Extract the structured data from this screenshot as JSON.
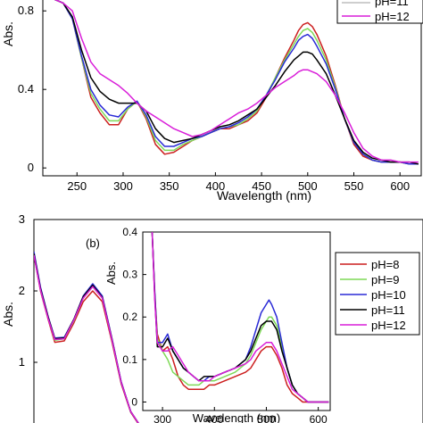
{
  "chart_data": [
    {
      "panel": "top",
      "type": "line",
      "xlabel": "Wavelength (nm)",
      "ylabel": "Abs.",
      "xlim": [
        213,
        623
      ],
      "ylim": [
        -0.04,
        0.86
      ],
      "xticks": [
        250,
        300,
        350,
        400,
        450,
        500,
        550,
        600
      ],
      "yticks": [
        0,
        0.4,
        0.8
      ],
      "ytick_labels": [
        "0",
        "0.4",
        "0.8"
      ],
      "legend_position": "top-right",
      "legend_visible": [
        "pH=11",
        "pH=12"
      ],
      "series": [
        {
          "name": "pH=8",
          "color": "#cc1f1f",
          "x": [
            225,
            235,
            245,
            255,
            265,
            275,
            285,
            295,
            305,
            315,
            325,
            335,
            345,
            355,
            365,
            375,
            385,
            395,
            405,
            415,
            425,
            435,
            445,
            455,
            465,
            475,
            485,
            490,
            495,
            500,
            505,
            510,
            520,
            530,
            540,
            550,
            560,
            570,
            580,
            590,
            600,
            610,
            620
          ],
          "y": [
            0.86,
            0.84,
            0.76,
            0.56,
            0.36,
            0.28,
            0.22,
            0.22,
            0.3,
            0.34,
            0.25,
            0.12,
            0.07,
            0.08,
            0.11,
            0.14,
            0.16,
            0.18,
            0.2,
            0.2,
            0.22,
            0.24,
            0.28,
            0.36,
            0.46,
            0.56,
            0.65,
            0.7,
            0.73,
            0.74,
            0.72,
            0.68,
            0.57,
            0.42,
            0.25,
            0.12,
            0.06,
            0.04,
            0.03,
            0.03,
            0.03,
            0.02,
            0.02
          ]
        },
        {
          "name": "pH=9",
          "color": "#7ed957",
          "x": [
            225,
            235,
            245,
            255,
            265,
            275,
            285,
            295,
            305,
            315,
            325,
            335,
            345,
            355,
            365,
            375,
            385,
            395,
            405,
            415,
            425,
            435,
            445,
            455,
            465,
            475,
            485,
            490,
            495,
            500,
            505,
            510,
            520,
            530,
            540,
            550,
            560,
            570,
            580,
            590,
            600,
            610,
            620
          ],
          "y": [
            0.86,
            0.84,
            0.76,
            0.56,
            0.38,
            0.3,
            0.24,
            0.24,
            0.3,
            0.34,
            0.26,
            0.14,
            0.09,
            0.09,
            0.12,
            0.14,
            0.16,
            0.18,
            0.2,
            0.21,
            0.22,
            0.25,
            0.29,
            0.37,
            0.46,
            0.55,
            0.63,
            0.67,
            0.7,
            0.71,
            0.69,
            0.65,
            0.55,
            0.41,
            0.25,
            0.13,
            0.07,
            0.04,
            0.03,
            0.03,
            0.03,
            0.02,
            0.02
          ]
        },
        {
          "name": "pH=10",
          "color": "#2a2ad6",
          "x": [
            225,
            235,
            245,
            255,
            265,
            275,
            285,
            295,
            305,
            315,
            325,
            335,
            345,
            355,
            365,
            375,
            385,
            395,
            405,
            415,
            425,
            435,
            445,
            455,
            465,
            475,
            485,
            490,
            495,
            500,
            505,
            510,
            520,
            530,
            540,
            550,
            560,
            570,
            580,
            590,
            600,
            610,
            620
          ],
          "y": [
            0.86,
            0.84,
            0.76,
            0.57,
            0.4,
            0.32,
            0.27,
            0.26,
            0.31,
            0.34,
            0.27,
            0.16,
            0.11,
            0.11,
            0.13,
            0.15,
            0.16,
            0.18,
            0.2,
            0.21,
            0.23,
            0.26,
            0.3,
            0.37,
            0.45,
            0.54,
            0.61,
            0.65,
            0.67,
            0.68,
            0.66,
            0.62,
            0.53,
            0.4,
            0.25,
            0.13,
            0.07,
            0.04,
            0.03,
            0.03,
            0.03,
            0.02,
            0.02
          ]
        },
        {
          "name": "pH=11",
          "color": "#000000",
          "x": [
            225,
            235,
            245,
            255,
            265,
            275,
            285,
            295,
            305,
            315,
            325,
            335,
            345,
            355,
            365,
            375,
            385,
            395,
            405,
            415,
            425,
            435,
            445,
            455,
            465,
            475,
            485,
            490,
            495,
            500,
            505,
            510,
            520,
            530,
            540,
            550,
            560,
            570,
            580,
            590,
            600,
            610,
            620
          ],
          "y": [
            0.86,
            0.84,
            0.77,
            0.6,
            0.46,
            0.39,
            0.35,
            0.33,
            0.33,
            0.33,
            0.29,
            0.2,
            0.15,
            0.13,
            0.14,
            0.15,
            0.17,
            0.19,
            0.21,
            0.22,
            0.24,
            0.27,
            0.3,
            0.36,
            0.42,
            0.49,
            0.55,
            0.57,
            0.59,
            0.59,
            0.58,
            0.55,
            0.48,
            0.37,
            0.25,
            0.14,
            0.08,
            0.05,
            0.04,
            0.03,
            0.03,
            0.03,
            0.02
          ]
        },
        {
          "name": "pH=12",
          "color": "#d91ed9",
          "x": [
            225,
            235,
            245,
            255,
            265,
            275,
            285,
            295,
            305,
            315,
            325,
            335,
            345,
            355,
            365,
            375,
            385,
            395,
            405,
            415,
            425,
            435,
            445,
            455,
            465,
            475,
            485,
            490,
            495,
            500,
            505,
            510,
            520,
            530,
            540,
            550,
            560,
            570,
            580,
            590,
            600,
            610,
            620
          ],
          "y": [
            0.86,
            0.84,
            0.8,
            0.66,
            0.54,
            0.48,
            0.45,
            0.42,
            0.38,
            0.33,
            0.29,
            0.26,
            0.23,
            0.2,
            0.18,
            0.16,
            0.17,
            0.19,
            0.22,
            0.25,
            0.28,
            0.3,
            0.33,
            0.37,
            0.41,
            0.44,
            0.47,
            0.49,
            0.5,
            0.5,
            0.49,
            0.48,
            0.44,
            0.37,
            0.28,
            0.18,
            0.1,
            0.06,
            0.04,
            0.04,
            0.03,
            0.03,
            0.03
          ]
        }
      ]
    },
    {
      "panel": "bottom",
      "type": "line",
      "annotation": "(b)",
      "ylabel": "Abs.",
      "xlim": [
        213,
        623
      ],
      "ylim": [
        0,
        3
      ],
      "yticks": [
        1,
        2,
        3
      ],
      "ytick_labels": [
        "1",
        "2",
        "3"
      ],
      "legend_position": "right",
      "series": [
        {
          "name": "pH=8",
          "color": "#cc1f1f",
          "x": [
            213,
            220,
            228,
            235,
            245,
            255,
            265,
            275,
            285,
            295,
            305,
            315,
            325,
            335
          ],
          "y": [
            2.5,
            2.0,
            1.6,
            1.28,
            1.3,
            1.55,
            1.85,
            2.0,
            1.85,
            1.3,
            0.7,
            0.3,
            0.1,
            0.0
          ]
        },
        {
          "name": "pH=9",
          "color": "#7ed957",
          "x": [
            213,
            220,
            228,
            235,
            245,
            255,
            265,
            275,
            285,
            295,
            305,
            315,
            325,
            335
          ],
          "y": [
            2.52,
            2.02,
            1.62,
            1.31,
            1.33,
            1.58,
            1.9,
            2.06,
            1.9,
            1.33,
            0.72,
            0.31,
            0.11,
            0.0
          ]
        },
        {
          "name": "pH=10",
          "color": "#2a2ad6",
          "x": [
            213,
            220,
            228,
            235,
            245,
            255,
            265,
            275,
            285,
            295,
            305,
            315,
            325,
            335
          ],
          "y": [
            2.55,
            2.05,
            1.64,
            1.34,
            1.35,
            1.6,
            1.93,
            2.1,
            1.93,
            1.35,
            0.73,
            0.31,
            0.11,
            0.0
          ]
        },
        {
          "name": "pH=11",
          "color": "#000000",
          "x": [
            213,
            220,
            228,
            235,
            245,
            255,
            265,
            275,
            285,
            295,
            305,
            315,
            325,
            335
          ],
          "y": [
            2.52,
            2.03,
            1.63,
            1.33,
            1.34,
            1.6,
            1.92,
            2.08,
            1.91,
            1.34,
            0.72,
            0.31,
            0.11,
            0.0
          ]
        },
        {
          "name": "pH=12",
          "color": "#d91ed9",
          "x": [
            213,
            220,
            228,
            235,
            245,
            255,
            265,
            275,
            285,
            295,
            305,
            315,
            325,
            335
          ],
          "y": [
            2.5,
            2.01,
            1.61,
            1.32,
            1.33,
            1.59,
            1.9,
            2.06,
            1.9,
            1.33,
            0.72,
            0.31,
            0.11,
            0.0
          ]
        }
      ]
    },
    {
      "panel": "inset",
      "type": "line",
      "xlabel": "Wavelength (nm)",
      "ylabel": "Abs.",
      "xlim": [
        262,
        623
      ],
      "ylim": [
        -0.02,
        0.4
      ],
      "xticks": [
        300,
        400,
        500,
        600
      ],
      "yticks": [
        0,
        0.1,
        0.2,
        0.3,
        0.4
      ],
      "ytick_labels": [
        "0",
        "0.1",
        "0.2",
        "0.3",
        "0.4"
      ],
      "series": [
        {
          "name": "pH=8",
          "color": "#cc1f1f",
          "x": [
            280,
            285,
            290,
            300,
            310,
            320,
            330,
            340,
            350,
            360,
            370,
            380,
            390,
            400,
            420,
            440,
            460,
            470,
            480,
            490,
            500,
            505,
            510,
            520,
            530,
            540,
            550,
            560,
            570,
            580,
            590,
            600,
            610,
            620
          ],
          "y": [
            0.4,
            0.25,
            0.16,
            0.12,
            0.13,
            0.1,
            0.06,
            0.04,
            0.03,
            0.03,
            0.03,
            0.03,
            0.04,
            0.04,
            0.05,
            0.06,
            0.07,
            0.08,
            0.1,
            0.12,
            0.13,
            0.13,
            0.13,
            0.11,
            0.08,
            0.04,
            0.02,
            0.01,
            0.0,
            0.0,
            0.0,
            0.0,
            0.0,
            0.0
          ]
        },
        {
          "name": "pH=9",
          "color": "#7ed957",
          "x": [
            280,
            285,
            290,
            300,
            310,
            320,
            330,
            340,
            350,
            360,
            370,
            380,
            390,
            400,
            420,
            440,
            460,
            470,
            480,
            490,
            500,
            505,
            510,
            520,
            530,
            540,
            550,
            560,
            570,
            580,
            590,
            600,
            610,
            620
          ],
          "y": [
            0.4,
            0.25,
            0.15,
            0.12,
            0.1,
            0.07,
            0.06,
            0.05,
            0.04,
            0.04,
            0.04,
            0.05,
            0.05,
            0.05,
            0.06,
            0.07,
            0.09,
            0.11,
            0.14,
            0.17,
            0.19,
            0.2,
            0.2,
            0.18,
            0.13,
            0.08,
            0.04,
            0.02,
            0.01,
            0.0,
            0.0,
            0.0,
            0.0,
            0.0
          ]
        },
        {
          "name": "pH=10",
          "color": "#2a2ad6",
          "x": [
            280,
            285,
            290,
            300,
            310,
            320,
            330,
            340,
            350,
            360,
            370,
            380,
            390,
            400,
            420,
            440,
            460,
            470,
            480,
            490,
            500,
            505,
            510,
            520,
            530,
            540,
            550,
            560,
            570,
            580,
            590,
            600,
            610,
            620
          ],
          "y": [
            0.4,
            0.26,
            0.14,
            0.14,
            0.16,
            0.12,
            0.1,
            0.08,
            0.07,
            0.06,
            0.05,
            0.05,
            0.06,
            0.06,
            0.07,
            0.08,
            0.1,
            0.13,
            0.17,
            0.21,
            0.23,
            0.24,
            0.23,
            0.2,
            0.14,
            0.08,
            0.04,
            0.02,
            0.01,
            0.0,
            0.0,
            0.0,
            0.0,
            0.0
          ]
        },
        {
          "name": "pH=11",
          "color": "#000000",
          "x": [
            280,
            285,
            290,
            300,
            310,
            320,
            330,
            340,
            350,
            360,
            370,
            380,
            390,
            400,
            420,
            440,
            460,
            470,
            480,
            490,
            500,
            505,
            510,
            520,
            530,
            540,
            550,
            560,
            570,
            580,
            590,
            600,
            610,
            620
          ],
          "y": [
            0.4,
            0.25,
            0.13,
            0.13,
            0.15,
            0.12,
            0.1,
            0.08,
            0.07,
            0.06,
            0.05,
            0.06,
            0.06,
            0.06,
            0.07,
            0.08,
            0.1,
            0.12,
            0.15,
            0.18,
            0.19,
            0.19,
            0.19,
            0.17,
            0.12,
            0.08,
            0.04,
            0.02,
            0.01,
            0.0,
            0.0,
            0.0,
            0.0,
            0.0
          ]
        },
        {
          "name": "pH=12",
          "color": "#d91ed9",
          "x": [
            280,
            285,
            290,
            300,
            310,
            320,
            330,
            340,
            350,
            360,
            370,
            380,
            390,
            400,
            420,
            440,
            460,
            470,
            480,
            490,
            500,
            505,
            510,
            520,
            530,
            540,
            550,
            560,
            570,
            580,
            590,
            600,
            610,
            620
          ],
          "y": [
            0.4,
            0.24,
            0.14,
            0.12,
            0.12,
            0.13,
            0.11,
            0.09,
            0.07,
            0.06,
            0.05,
            0.05,
            0.05,
            0.06,
            0.07,
            0.08,
            0.09,
            0.1,
            0.12,
            0.13,
            0.14,
            0.14,
            0.14,
            0.12,
            0.09,
            0.06,
            0.03,
            0.02,
            0.01,
            0.0,
            0.0,
            0.0,
            0.0,
            0.0
          ]
        }
      ]
    }
  ]
}
